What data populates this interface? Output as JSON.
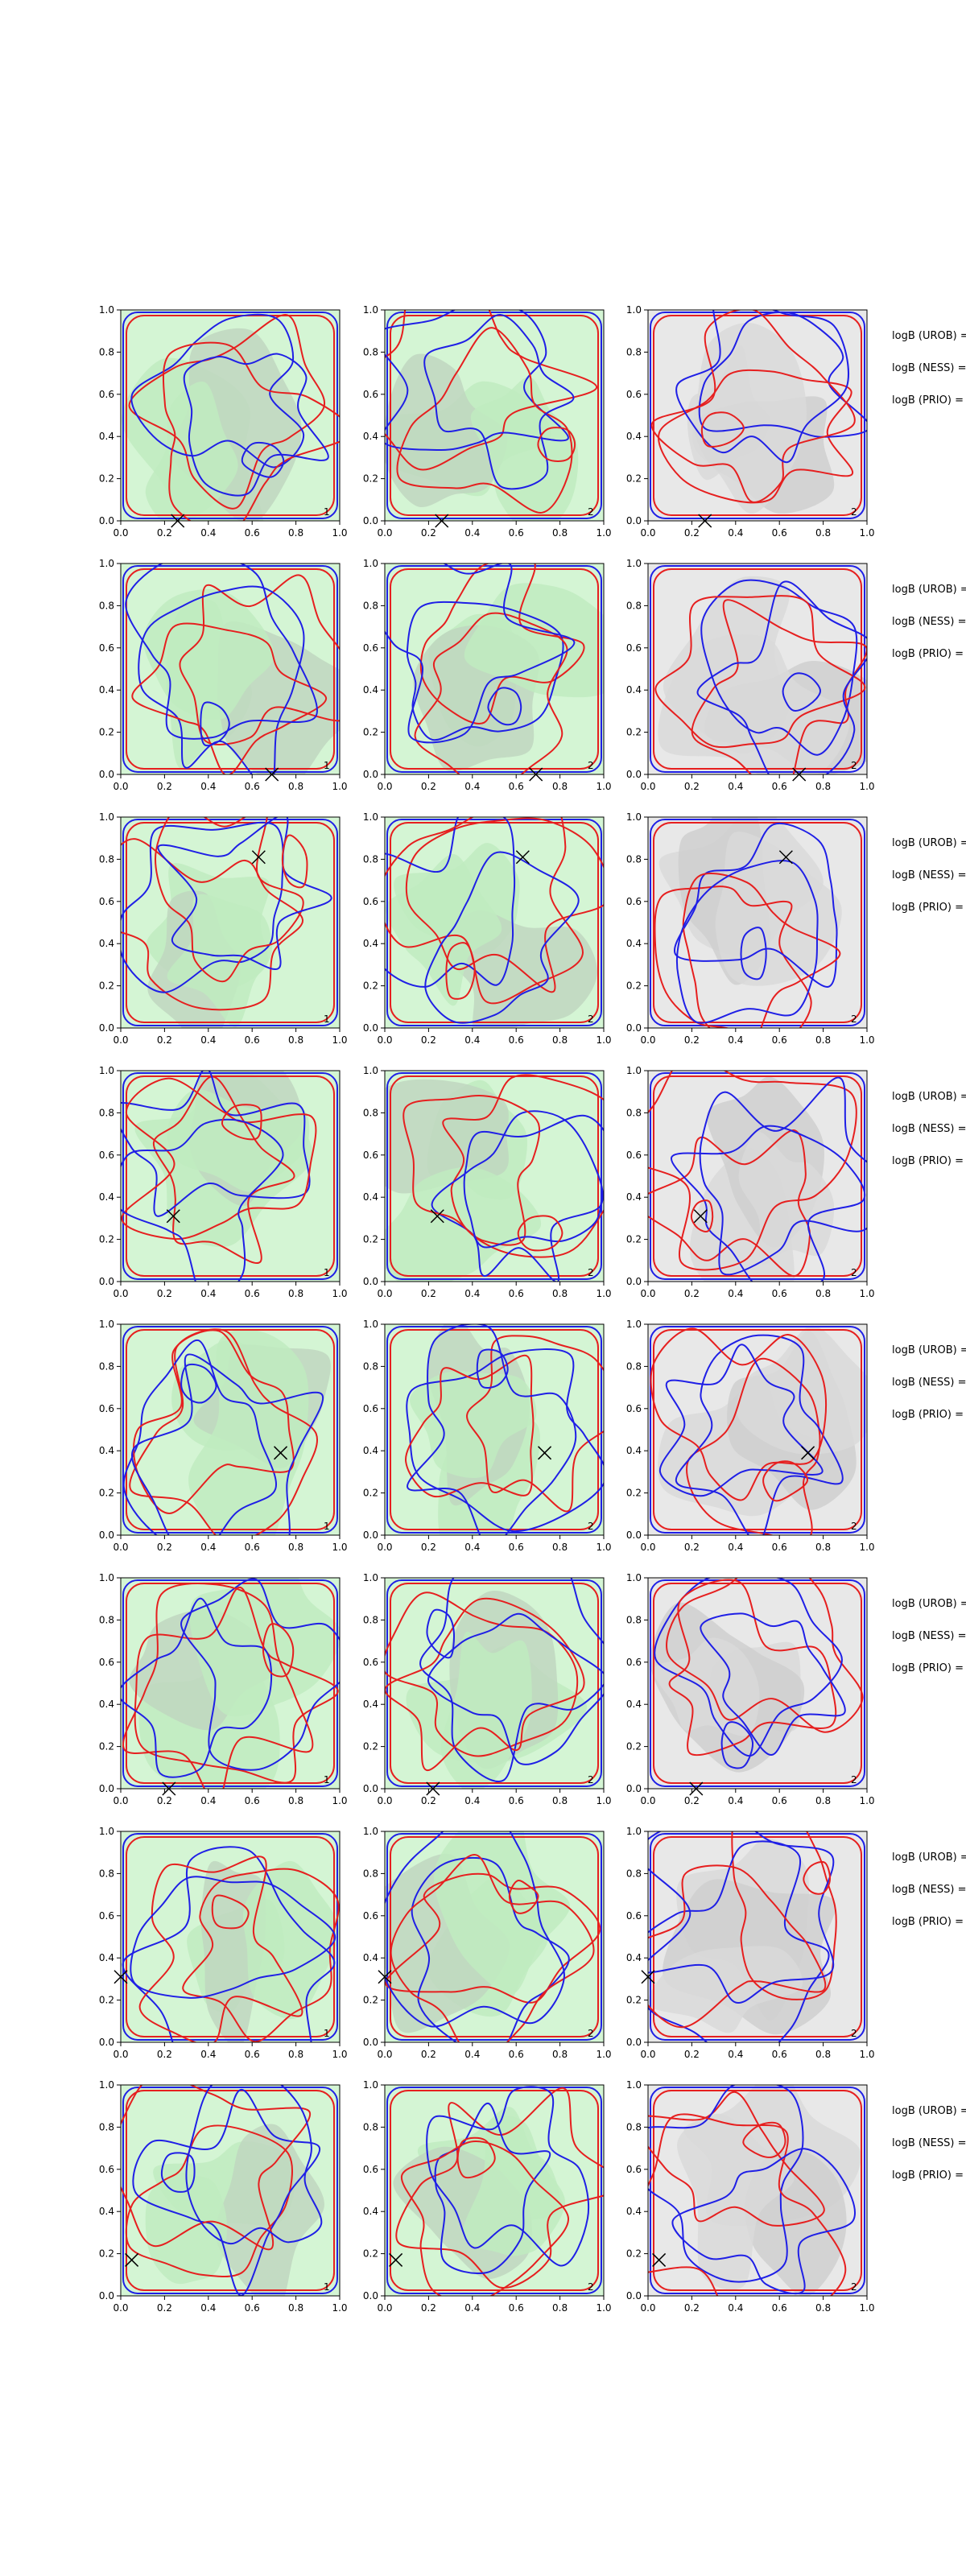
{
  "chart_data": {
    "type": "contour",
    "description_layout": "8 rows x 3 columns of contour panels",
    "axes": {
      "xlim": [
        0.0,
        1.0
      ],
      "ylim": [
        0.0,
        1.0
      ],
      "xticks": [
        "0.0",
        "0.2",
        "0.4",
        "0.6",
        "0.8",
        "1.0"
      ],
      "yticks": [
        "0.0",
        "0.2",
        "0.4",
        "0.6",
        "0.8",
        "1.0"
      ]
    },
    "colors": {
      "contour_a": "#1f1fe6",
      "contour_b": "#e61f1f",
      "fill_green_light": "#d4f5d4",
      "fill_green_mid": "#c0ebc0",
      "fill_green_grey": "#bfd6bf",
      "fill_grey_light": "#e8e8e8",
      "fill_grey_mid": "#d9d9d9",
      "fill_grey_dark": "#cfcfcf"
    },
    "side_labels": [
      "logB (UROB) =",
      "logB (NESS) =",
      "logB (PRIO) ="
    ],
    "rows": [
      {
        "marker": [
          0.26,
          0.0
        ],
        "panel_numbers": [
          "1",
          "2",
          "2"
        ]
      },
      {
        "marker": [
          0.69,
          0.0
        ],
        "panel_numbers": [
          "1",
          "2",
          "2"
        ]
      },
      {
        "marker": [
          0.63,
          0.81
        ],
        "panel_numbers": [
          "1",
          "2",
          "2"
        ]
      },
      {
        "marker": [
          0.24,
          0.31
        ],
        "panel_numbers": [
          "1",
          "2",
          "2"
        ]
      },
      {
        "marker": [
          0.73,
          0.39
        ],
        "panel_numbers": [
          "1",
          "2",
          "2"
        ]
      },
      {
        "marker": [
          0.22,
          0.0
        ],
        "panel_numbers": [
          "1",
          "2",
          "2"
        ]
      },
      {
        "marker": [
          0.0,
          0.31
        ],
        "panel_numbers": [
          "1",
          "2",
          "2"
        ]
      },
      {
        "marker": [
          0.05,
          0.17
        ],
        "panel_numbers": [
          "1",
          "2",
          "2"
        ]
      }
    ]
  }
}
